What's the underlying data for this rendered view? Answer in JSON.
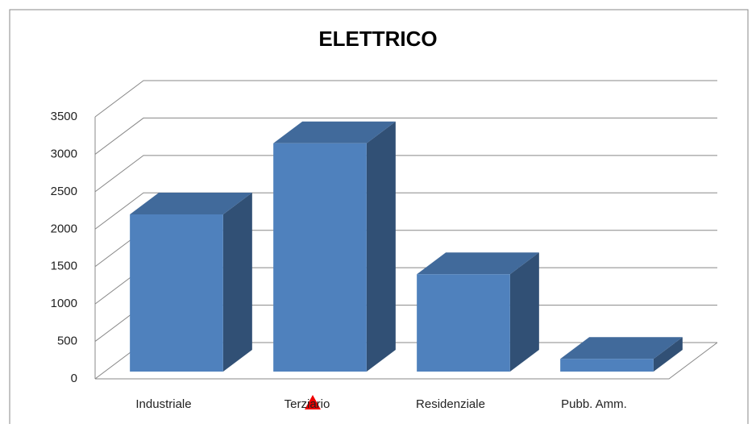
{
  "chart_data": {
    "type": "bar3d",
    "title": "ELETTRICO",
    "categories": [
      "Industriale",
      "Terziario",
      "Residenziale",
      "Pubb. Amm."
    ],
    "values": [
      2100,
      3050,
      1300,
      170
    ],
    "color": "#4f81bd",
    "ylim": [
      0,
      3500
    ],
    "yticks": [
      0,
      500,
      1000,
      1500,
      2000,
      2500,
      3000,
      3500
    ],
    "grid": true
  }
}
